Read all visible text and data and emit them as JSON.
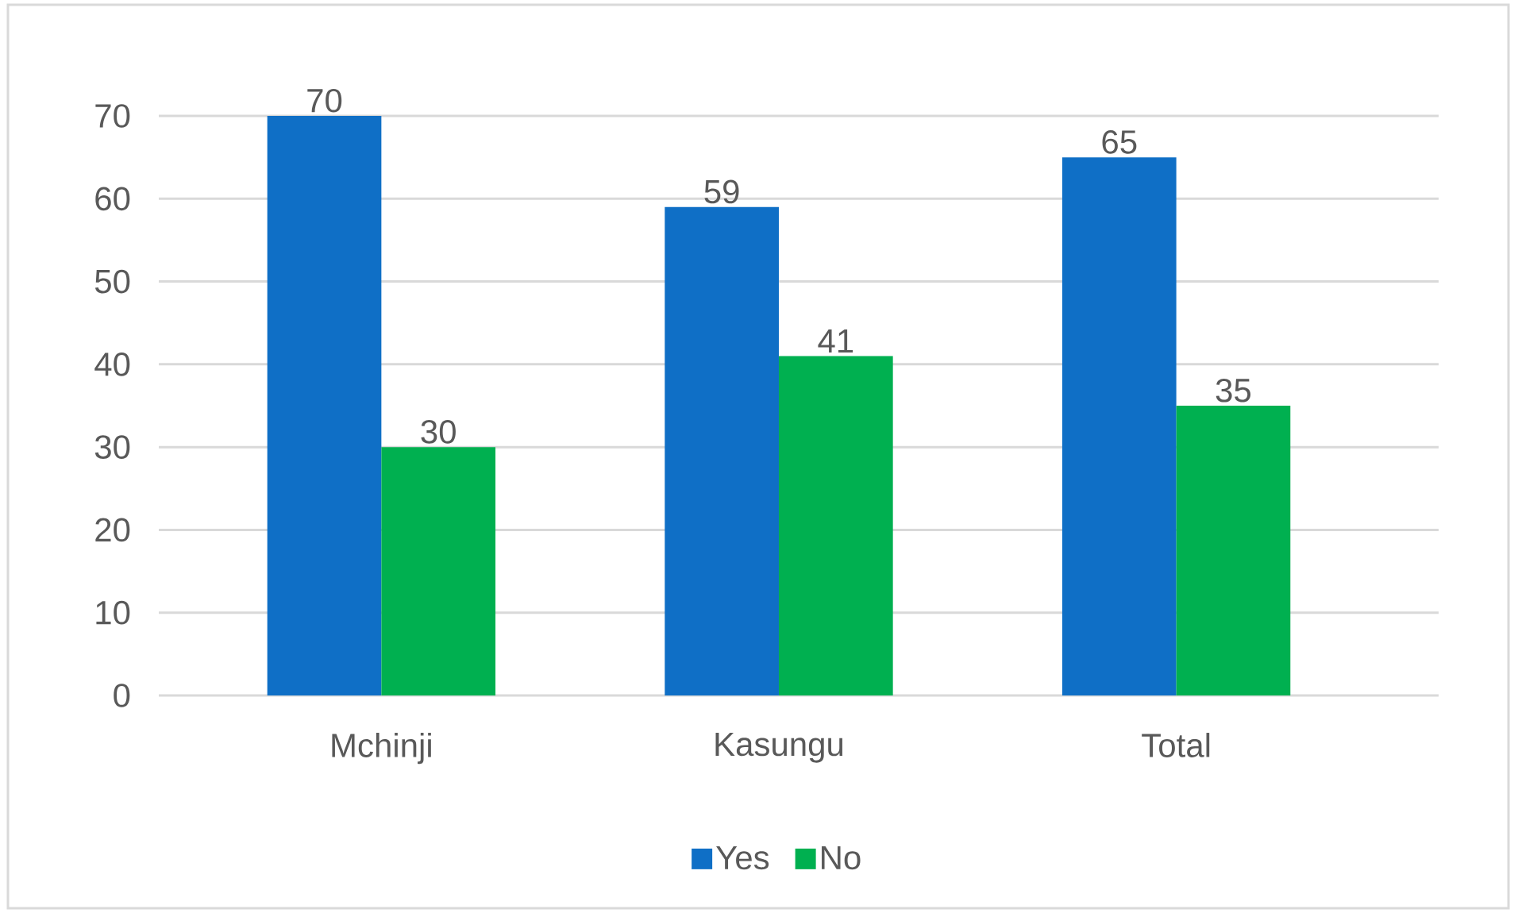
{
  "chart_data": {
    "type": "bar",
    "categories": [
      "Mchinji",
      "Kasungu",
      "Total"
    ],
    "series": [
      {
        "name": "Yes",
        "color": "#0f6fc6",
        "values": [
          70,
          59,
          65
        ]
      },
      {
        "name": "No",
        "color": "#00b050",
        "values": [
          30,
          41,
          35
        ]
      }
    ],
    "ylim": [
      0,
      70
    ],
    "yticks": [
      0,
      10,
      20,
      30,
      40,
      50,
      60,
      70
    ],
    "grid": "y",
    "data_labels": true,
    "legend": "bottom"
  }
}
